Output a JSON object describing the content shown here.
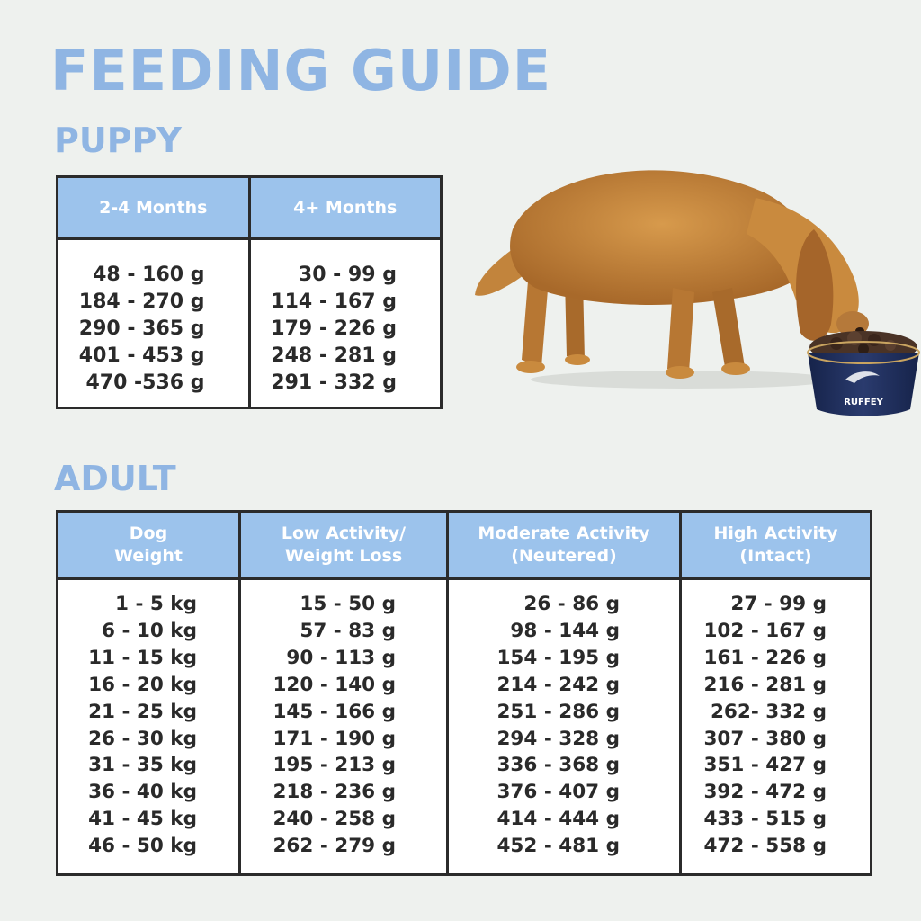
{
  "title": "FEEDING GUIDE",
  "puppy": {
    "heading": "PUPPY",
    "columns": [
      "2-4 Months",
      "4+ Months"
    ],
    "rows": [
      [
        "48 - 160 g",
        "30 - 99 g"
      ],
      [
        "184 - 270 g",
        "114 - 167 g"
      ],
      [
        "290 - 365 g",
        "179 - 226 g"
      ],
      [
        "401 - 453 g",
        "248 - 281 g"
      ],
      [
        "470 -536 g",
        "291 - 332 g"
      ]
    ]
  },
  "adult": {
    "heading": "ADULT",
    "columns": [
      [
        "Dog",
        "Weight"
      ],
      [
        "Low Activity/",
        "Weight Loss"
      ],
      [
        "Moderate Activity",
        "(Neutered)"
      ],
      [
        "High Activity",
        "(Intact)"
      ]
    ],
    "rows": [
      [
        "1 - 5 kg",
        "15 - 50 g",
        "26 - 86 g",
        "27 - 99 g"
      ],
      [
        "6 - 10 kg",
        "57 - 83 g",
        "98 - 144 g",
        "102 - 167 g"
      ],
      [
        "11 - 15 kg",
        "90 - 113 g",
        "154 - 195 g",
        "161 - 226 g"
      ],
      [
        "16 - 20 kg",
        "120 - 140 g",
        "214 - 242 g",
        "216 - 281 g"
      ],
      [
        "21 - 25 kg",
        "145 - 166 g",
        "251 - 286 g",
        "262- 332 g"
      ],
      [
        "26 - 30 kg",
        "171 - 190 g",
        "294 - 328 g",
        "307 - 380 g"
      ],
      [
        "31 - 35 kg",
        "195 - 213 g",
        "336 - 368 g",
        "351 - 427 g"
      ],
      [
        "36 - 40 kg",
        "218 - 236 g",
        "376 - 407 g",
        "392 - 472 g"
      ],
      [
        "41 - 45 kg",
        "240 - 258 g",
        "414 - 444 g",
        "433 - 515 g"
      ],
      [
        "46 - 50 kg",
        "262 - 279 g",
        "452 - 481 g",
        "472 - 558 g"
      ]
    ]
  },
  "photo": {
    "bowl_brand": "RUFFEY",
    "colors": {
      "dog_fur": "#c98a3e",
      "bowl": "#1f2e5a",
      "kibble": "#4a3326"
    }
  }
}
